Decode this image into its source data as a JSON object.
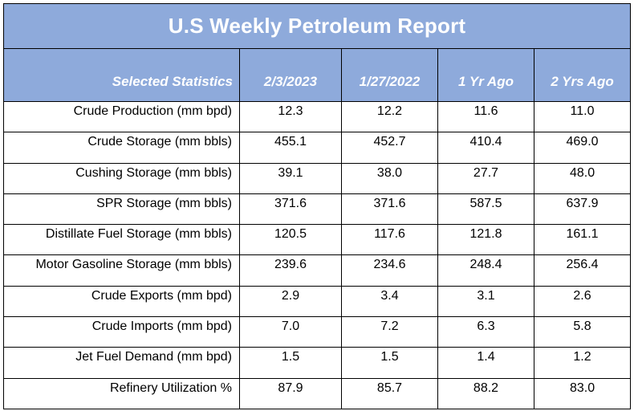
{
  "title": "U.S Weekly Petroleum Report",
  "columns": [
    "Selected Statistics",
    "2/3/2023",
    "1/27/2022",
    "1 Yr Ago",
    "2 Yrs Ago"
  ],
  "rows": [
    {
      "label": "Crude Production (mm bpd)",
      "values": [
        "12.3",
        "12.2",
        "11.6",
        "11.0"
      ]
    },
    {
      "label": "Crude Storage (mm bbls)",
      "values": [
        "455.1",
        "452.7",
        "410.4",
        "469.0"
      ]
    },
    {
      "label": "Cushing Storage (mm bbls)",
      "values": [
        "39.1",
        "38.0",
        "27.7",
        "48.0"
      ]
    },
    {
      "label": "SPR Storage (mm bbls)",
      "values": [
        "371.6",
        "371.6",
        "587.5",
        "637.9"
      ]
    },
    {
      "label": "Distillate Fuel Storage (mm bbls)",
      "values": [
        "120.5",
        "117.6",
        "121.8",
        "161.1"
      ]
    },
    {
      "label": "Motor Gasoline Storage (mm bbls)",
      "values": [
        "239.6",
        "234.6",
        "248.4",
        "256.4"
      ]
    },
    {
      "label": "Crude Exports (mm bpd)",
      "values": [
        "2.9",
        "3.4",
        "3.1",
        "2.6"
      ]
    },
    {
      "label": "Crude Imports (mm bpd)",
      "values": [
        "7.0",
        "7.2",
        "6.3",
        "5.8"
      ]
    },
    {
      "label": "Jet Fuel Demand (mm bpd)",
      "values": [
        "1.5",
        "1.5",
        "1.4",
        "1.2"
      ]
    },
    {
      "label": "Refinery Utilization %",
      "values": [
        "87.9",
        "85.7",
        "88.2",
        "83.0"
      ]
    }
  ],
  "colors": {
    "header_fill": "#8eaadb",
    "header_text": "#ffffff",
    "border": "#000000"
  }
}
